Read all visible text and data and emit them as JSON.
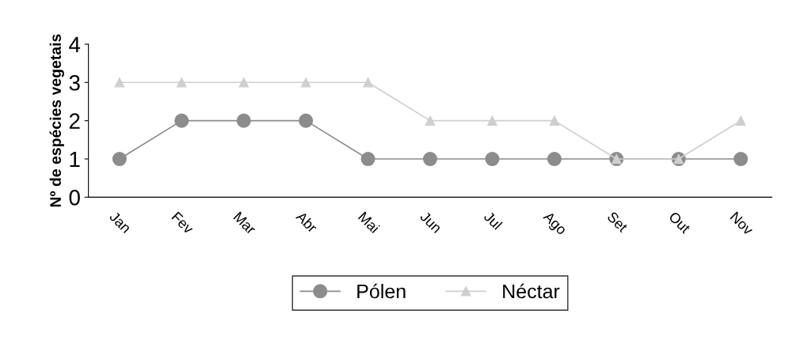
{
  "chart_data": {
    "type": "line",
    "ylabel": "Nº de espécies vegetais",
    "categories": [
      "Jan",
      "Fev",
      "Mar",
      "Abr",
      "Mai",
      "Jun",
      "Jul",
      "Ago",
      "Set",
      "Out",
      "Nov"
    ],
    "series": [
      {
        "name": "Pólen",
        "color": "#8c8c8c",
        "marker": "circle",
        "values": [
          1,
          2,
          2,
          2,
          1,
          1,
          1,
          1,
          1,
          1,
          1
        ]
      },
      {
        "name": "Néctar",
        "color": "#cfcfcf",
        "marker": "triangle",
        "values": [
          3,
          3,
          3,
          3,
          3,
          2,
          2,
          2,
          1,
          1,
          2
        ]
      }
    ],
    "ylim": [
      0,
      4
    ],
    "yticks": [
      0,
      1,
      2,
      3,
      4
    ],
    "grid": false,
    "legend": "bottom"
  }
}
